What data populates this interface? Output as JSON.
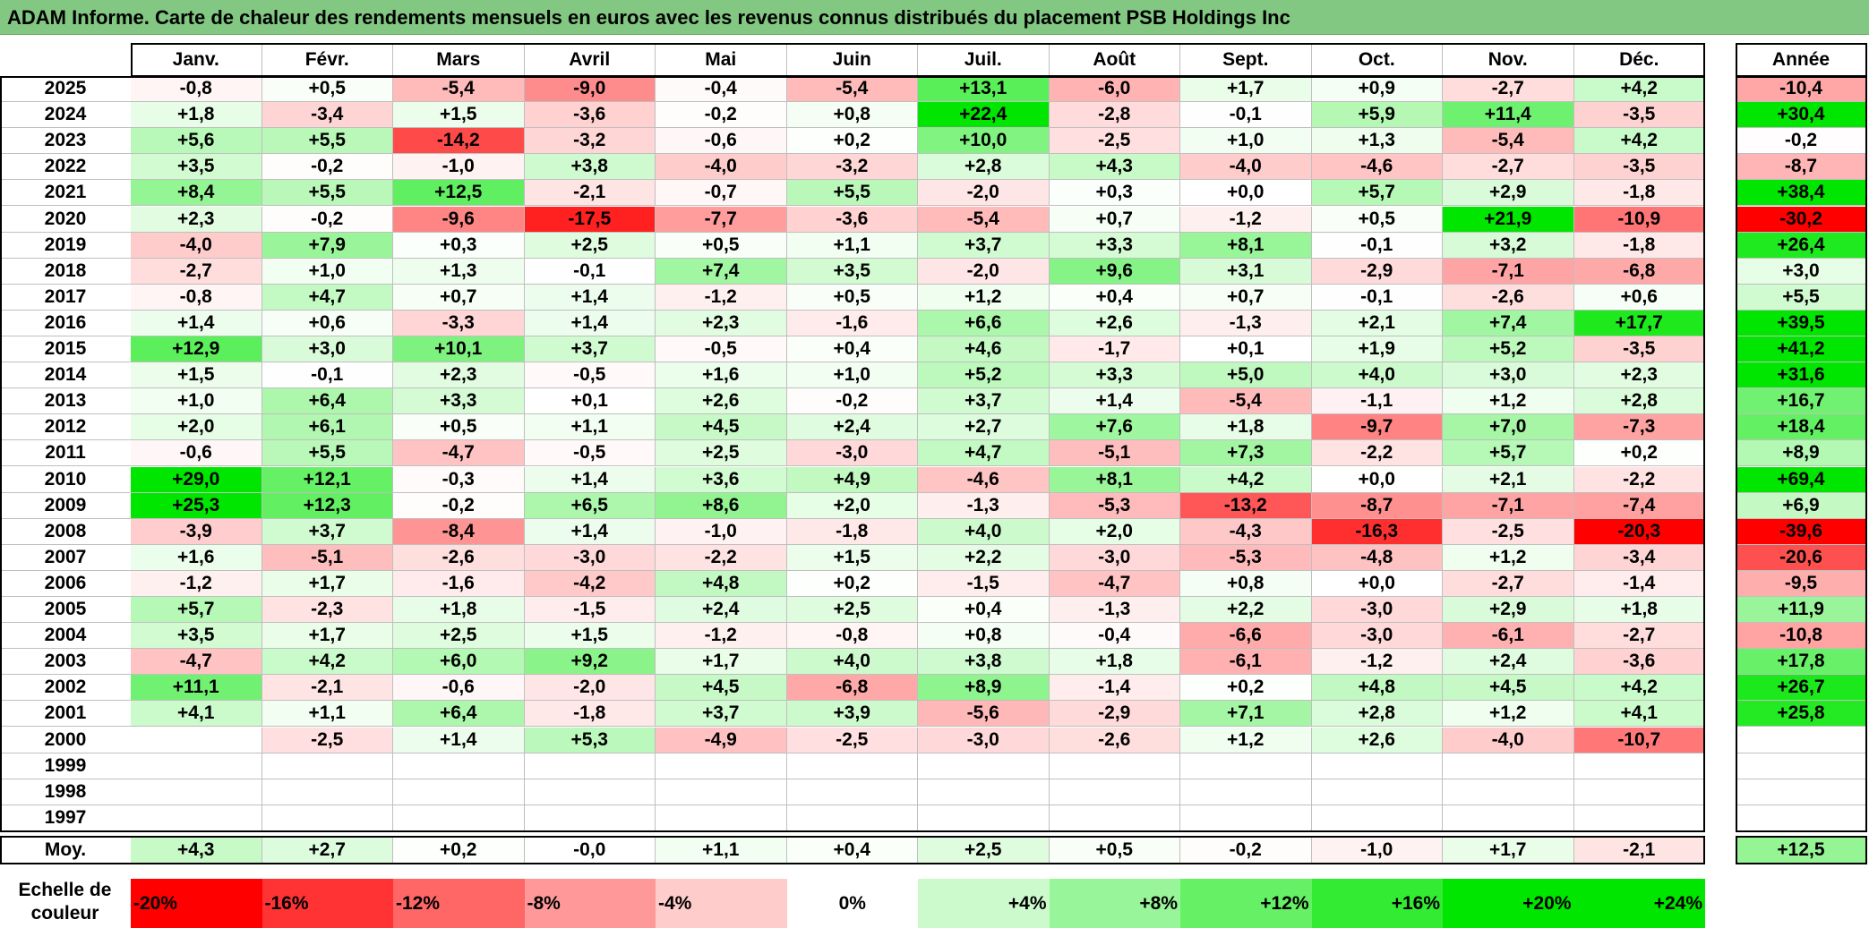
{
  "title": "ADAM Informe. Carte de chaleur des rendements mensuels en euros avec les revenus connus distribués du placement PSB Holdings Inc",
  "chart_data": {
    "type": "heatmap",
    "columns": [
      "Janv.",
      "Févr.",
      "Mars",
      "Avril",
      "Mai",
      "Juin",
      "Juil.",
      "Août",
      "Sept.",
      "Oct.",
      "Nov.",
      "Déc."
    ],
    "year_header": "Année",
    "rows": [
      {
        "year": "2025",
        "values": [
          "-0,8",
          "+0,5",
          "-5,4",
          "-9,0",
          "-0,4",
          "-5,4",
          "+13,1",
          "-6,0",
          "+1,7",
          "+0,9",
          "-2,7",
          "+4,2"
        ],
        "annual": "-10,4"
      },
      {
        "year": "2024",
        "values": [
          "+1,8",
          "-3,4",
          "+1,5",
          "-3,6",
          "-0,2",
          "+0,8",
          "+22,4",
          "-2,8",
          "-0,1",
          "+5,9",
          "+11,4",
          "-3,5"
        ],
        "annual": "+30,4"
      },
      {
        "year": "2023",
        "values": [
          "+5,6",
          "+5,5",
          "-14,2",
          "-3,2",
          "-0,6",
          "+0,2",
          "+10,0",
          "-2,5",
          "+1,0",
          "+1,3",
          "-5,4",
          "+4,2"
        ],
        "annual": "-0,2"
      },
      {
        "year": "2022",
        "values": [
          "+3,5",
          "-0,2",
          "-1,0",
          "+3,8",
          "-4,0",
          "-3,2",
          "+2,8",
          "+4,3",
          "-4,0",
          "-4,6",
          "-2,7",
          "-3,5"
        ],
        "annual": "-8,7"
      },
      {
        "year": "2021",
        "values": [
          "+8,4",
          "+5,5",
          "+12,5",
          "-2,1",
          "-0,7",
          "+5,5",
          "-2,0",
          "+0,3",
          "+0,0",
          "+5,7",
          "+2,9",
          "-1,8"
        ],
        "annual": "+38,4"
      },
      {
        "year": "2020",
        "values": [
          "+2,3",
          "-0,2",
          "-9,6",
          "-17,5",
          "-7,7",
          "-3,6",
          "-5,4",
          "+0,7",
          "-1,2",
          "+0,5",
          "+21,9",
          "-10,9"
        ],
        "annual": "-30,2"
      },
      {
        "year": "2019",
        "values": [
          "-4,0",
          "+7,9",
          "+0,3",
          "+2,5",
          "+0,5",
          "+1,1",
          "+3,7",
          "+3,3",
          "+8,1",
          "-0,1",
          "+3,2",
          "-1,8"
        ],
        "annual": "+26,4"
      },
      {
        "year": "2018",
        "values": [
          "-2,7",
          "+1,0",
          "+1,3",
          "-0,1",
          "+7,4",
          "+3,5",
          "-2,0",
          "+9,6",
          "+3,1",
          "-2,9",
          "-7,1",
          "-6,8"
        ],
        "annual": "+3,0"
      },
      {
        "year": "2017",
        "values": [
          "-0,8",
          "+4,7",
          "+0,7",
          "+1,4",
          "-1,2",
          "+0,5",
          "+1,2",
          "+0,4",
          "+0,7",
          "-0,1",
          "-2,6",
          "+0,6"
        ],
        "annual": "+5,5"
      },
      {
        "year": "2016",
        "values": [
          "+1,4",
          "+0,6",
          "-3,3",
          "+1,4",
          "+2,3",
          "-1,6",
          "+6,6",
          "+2,6",
          "-1,3",
          "+2,1",
          "+7,4",
          "+17,7"
        ],
        "annual": "+39,5"
      },
      {
        "year": "2015",
        "values": [
          "+12,9",
          "+3,0",
          "+10,1",
          "+3,7",
          "-0,5",
          "+0,4",
          "+4,6",
          "-1,7",
          "+0,1",
          "+1,9",
          "+5,2",
          "-3,5"
        ],
        "annual": "+41,2"
      },
      {
        "year": "2014",
        "values": [
          "+1,5",
          "-0,1",
          "+2,3",
          "-0,5",
          "+1,6",
          "+1,0",
          "+5,2",
          "+3,3",
          "+5,0",
          "+4,0",
          "+3,0",
          "+2,3"
        ],
        "annual": "+31,6"
      },
      {
        "year": "2013",
        "values": [
          "+1,0",
          "+6,4",
          "+3,3",
          "+0,1",
          "+2,6",
          "-0,2",
          "+3,7",
          "+1,4",
          "-5,4",
          "-1,1",
          "+1,2",
          "+2,8"
        ],
        "annual": "+16,7"
      },
      {
        "year": "2012",
        "values": [
          "+2,0",
          "+6,1",
          "+0,5",
          "+1,1",
          "+4,5",
          "+2,4",
          "+2,7",
          "+7,6",
          "+1,8",
          "-9,7",
          "+7,0",
          "-7,3"
        ],
        "annual": "+18,4"
      },
      {
        "year": "2011",
        "values": [
          "-0,6",
          "+5,5",
          "-4,7",
          "-0,5",
          "+2,5",
          "-3,0",
          "+4,7",
          "-5,1",
          "+7,3",
          "-2,2",
          "+5,7",
          "+0,2"
        ],
        "annual": "+8,9"
      },
      {
        "year": "2010",
        "values": [
          "+29,0",
          "+12,1",
          "-0,3",
          "+1,4",
          "+3,6",
          "+4,9",
          "-4,6",
          "+8,1",
          "+4,2",
          "+0,0",
          "+2,1",
          "-2,2"
        ],
        "annual": "+69,4"
      },
      {
        "year": "2009",
        "values": [
          "+25,3",
          "+12,3",
          "-0,2",
          "+6,5",
          "+8,6",
          "+2,0",
          "-1,3",
          "-5,3",
          "-13,2",
          "-8,7",
          "-7,1",
          "-7,4"
        ],
        "annual": "+6,9"
      },
      {
        "year": "2008",
        "values": [
          "-3,9",
          "+3,7",
          "-8,4",
          "+1,4",
          "-1,0",
          "-1,8",
          "+4,0",
          "+2,0",
          "-4,3",
          "-16,3",
          "-2,5",
          "-20,3"
        ],
        "annual": "-39,6"
      },
      {
        "year": "2007",
        "values": [
          "+1,6",
          "-5,1",
          "-2,6",
          "-3,0",
          "-2,2",
          "+1,5",
          "+2,2",
          "-3,0",
          "-5,3",
          "-4,8",
          "+1,2",
          "-3,4"
        ],
        "annual": "-20,6"
      },
      {
        "year": "2006",
        "values": [
          "-1,2",
          "+1,7",
          "-1,6",
          "-4,2",
          "+4,8",
          "+0,2",
          "-1,5",
          "-4,7",
          "+0,8",
          "+0,0",
          "-2,7",
          "-1,4"
        ],
        "annual": "-9,5"
      },
      {
        "year": "2005",
        "values": [
          "+5,7",
          "-2,3",
          "+1,8",
          "-1,5",
          "+2,4",
          "+2,5",
          "+0,4",
          "-1,3",
          "+2,2",
          "-3,0",
          "+2,9",
          "+1,8"
        ],
        "annual": "+11,9"
      },
      {
        "year": "2004",
        "values": [
          "+3,5",
          "+1,7",
          "+2,5",
          "+1,5",
          "-1,2",
          "-0,8",
          "+0,8",
          "-0,4",
          "-6,6",
          "-3,0",
          "-6,1",
          "-2,7"
        ],
        "annual": "-10,8"
      },
      {
        "year": "2003",
        "values": [
          "-4,7",
          "+4,2",
          "+6,0",
          "+9,2",
          "+1,7",
          "+4,0",
          "+3,8",
          "+1,8",
          "-6,1",
          "-1,2",
          "+2,4",
          "-3,6"
        ],
        "annual": "+17,8"
      },
      {
        "year": "2002",
        "values": [
          "+11,1",
          "-2,1",
          "-0,6",
          "-2,0",
          "+4,5",
          "-6,8",
          "+8,9",
          "-1,4",
          "+0,2",
          "+4,8",
          "+4,5",
          "+4,2"
        ],
        "annual": "+26,7"
      },
      {
        "year": "2001",
        "values": [
          "+4,1",
          "+1,1",
          "+6,4",
          "-1,8",
          "+3,7",
          "+3,9",
          "-5,6",
          "-2,9",
          "+7,1",
          "+2,8",
          "+1,2",
          "+4,1"
        ],
        "annual": "+25,8"
      },
      {
        "year": "2000",
        "values": [
          "",
          "-2,5",
          "+1,4",
          "+5,3",
          "-4,9",
          "-2,5",
          "-3,0",
          "-2,6",
          "+1,2",
          "+2,6",
          "-4,0",
          "-10,7"
        ],
        "annual": ""
      },
      {
        "year": "1999",
        "values": [
          "",
          "",
          "",
          "",
          "",
          "",
          "",
          "",
          "",
          "",
          "",
          ""
        ],
        "annual": ""
      },
      {
        "year": "1998",
        "values": [
          "",
          "",
          "",
          "",
          "",
          "",
          "",
          "",
          "",
          "",
          "",
          ""
        ],
        "annual": ""
      },
      {
        "year": "1997",
        "values": [
          "",
          "",
          "",
          "",
          "",
          "",
          "",
          "",
          "",
          "",
          "",
          ""
        ],
        "annual": ""
      }
    ],
    "average": {
      "label": "Moy.",
      "values": [
        "+4,3",
        "+2,7",
        "+0,2",
        "-0,0",
        "+1,1",
        "+0,4",
        "+2,5",
        "+0,5",
        "-0,2",
        "-1,0",
        "+1,7",
        "-2,1"
      ],
      "annual": "+12,5"
    },
    "color_scale": {
      "label": "Echelle de couleur",
      "steps": [
        "-20%",
        "-16%",
        "-12%",
        "-8%",
        "-4%",
        "0%",
        "+4%",
        "+8%",
        "+12%",
        "+16%",
        "+20%",
        "+24%"
      ],
      "negative_color": "#ff0000",
      "positive_color": "#00e600",
      "neutral_color": "#ffffff"
    }
  }
}
